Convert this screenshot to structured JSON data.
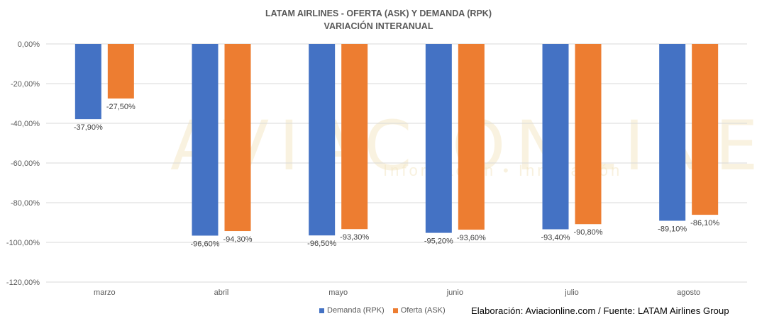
{
  "chart_data": {
    "type": "bar",
    "title": "LATAM AIRLINES - OFERTA (ASK) Y DEMANDA (RPK)",
    "subtitle": "VARIACIÓN INTERANUAL",
    "categories": [
      "marzo",
      "abril",
      "mayo",
      "junio",
      "julio",
      "agosto"
    ],
    "series": [
      {
        "name": "Demanda (RPK)",
        "color": "#4472C4",
        "values": [
          -37.9,
          -96.6,
          -96.5,
          -95.2,
          -93.4,
          -89.1
        ],
        "labels": [
          "-37,90%",
          "-96,60%",
          "-96,50%",
          "-95,20%",
          "-93,40%",
          "-89,10%"
        ]
      },
      {
        "name": "Oferta (ASK)",
        "color": "#ED7D31",
        "values": [
          -27.5,
          -94.3,
          -93.3,
          -93.6,
          -90.8,
          -86.1
        ],
        "labels": [
          "-27,50%",
          "-94,30%",
          "-93,30%",
          "-93,60%",
          "-90,80%",
          "-86,10%"
        ]
      }
    ],
    "ylim": [
      -120,
      0
    ],
    "yticks": [
      0,
      -20,
      -40,
      -60,
      -80,
      -100,
      -120
    ],
    "ytick_labels": [
      "0,00%",
      "-20,00%",
      "-40,00%",
      "-60,00%",
      "-80,00%",
      "-100,00%",
      "-120,00%"
    ],
    "xlabel": "",
    "ylabel": "",
    "grid": true,
    "legend": "bottom"
  },
  "credit": "Elaboración: Aviacionline.com  / Fuente: LATAM Airlines  Group",
  "watermark": {
    "main": "AVIACIONLINE",
    "sub": "Información • Innovación"
  }
}
